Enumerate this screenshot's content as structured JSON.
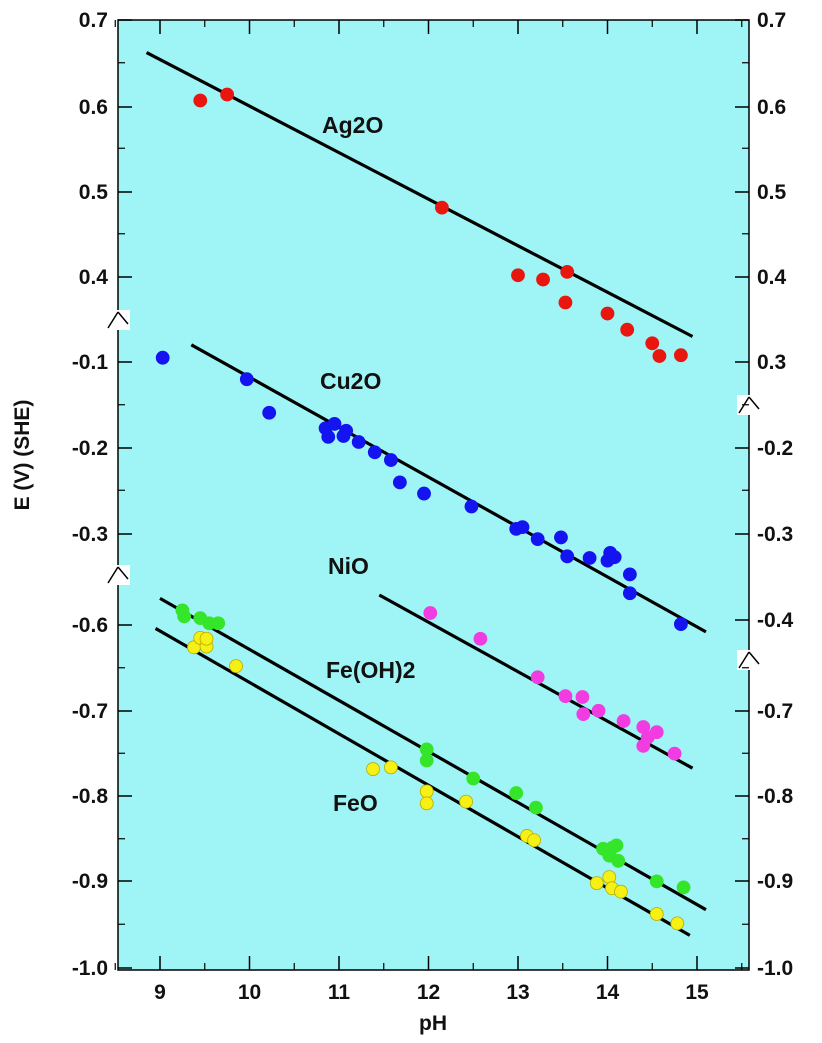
{
  "chart_data": {
    "type": "scatter",
    "title": "",
    "xlabel": "pH",
    "ylabel": "E (V) (SHE)",
    "xlim": [
      8.4,
      15.9
    ],
    "grid": false,
    "x_ticks": [
      "9",
      "10",
      "11",
      "12",
      "13",
      "14",
      "15"
    ],
    "y_ticks_left": [
      "0.7",
      "0.6",
      "0.5",
      "0.4",
      "-0.1",
      "-0.2",
      "-0.3",
      "-0.6",
      "-0.7",
      "-0.8",
      "-0.9",
      "-1.0"
    ],
    "y_ticks_right": [
      "0.7",
      "0.6",
      "0.5",
      "0.4",
      "0.3",
      "-0.2",
      "-0.3",
      "-0.4",
      "-0.7",
      "-0.8",
      "-0.9",
      "-1.0"
    ],
    "axis_breaks": "broken y-axis with break marks between segments",
    "plot_background": "#9ff5f5",
    "series": [
      {
        "name": "Ag2O",
        "color": "#e8160f",
        "fit_line": {
          "x": [
            8.85,
            14.95
          ],
          "y": [
            0.662,
            0.33
          ]
        },
        "points": [
          {
            "x": 9.45,
            "y": 0.606
          },
          {
            "x": 9.75,
            "y": 0.613
          },
          {
            "x": 12.15,
            "y": 0.481
          },
          {
            "x": 13.0,
            "y": 0.402
          },
          {
            "x": 13.28,
            "y": 0.397
          },
          {
            "x": 13.55,
            "y": 0.406
          },
          {
            "x": 13.53,
            "y": 0.37
          },
          {
            "x": 14.0,
            "y": 0.357
          },
          {
            "x": 14.22,
            "y": 0.338
          },
          {
            "x": 14.5,
            "y": 0.322
          },
          {
            "x": 14.58,
            "y": 0.307
          },
          {
            "x": 14.82,
            "y": 0.308
          }
        ]
      },
      {
        "name": "Cu2O",
        "color": "#1414f0",
        "fit_line": {
          "x": [
            9.35,
            15.1
          ],
          "y": [
            -0.08,
            -0.414
          ]
        },
        "points": [
          {
            "x": 9.03,
            "y": -0.095
          },
          {
            "x": 9.97,
            "y": -0.12
          },
          {
            "x": 10.22,
            "y": -0.159
          },
          {
            "x": 10.85,
            "y": -0.177
          },
          {
            "x": 10.88,
            "y": -0.187
          },
          {
            "x": 10.95,
            "y": -0.172
          },
          {
            "x": 11.05,
            "y": -0.186
          },
          {
            "x": 11.08,
            "y": -0.18
          },
          {
            "x": 11.22,
            "y": -0.193
          },
          {
            "x": 11.4,
            "y": -0.205
          },
          {
            "x": 11.58,
            "y": -0.214
          },
          {
            "x": 11.68,
            "y": -0.24
          },
          {
            "x": 11.95,
            "y": -0.253
          },
          {
            "x": 12.48,
            "y": -0.268
          },
          {
            "x": 12.98,
            "y": -0.294
          },
          {
            "x": 13.05,
            "y": -0.292
          },
          {
            "x": 13.22,
            "y": -0.306
          },
          {
            "x": 13.48,
            "y": -0.304
          },
          {
            "x": 13.55,
            "y": -0.326
          },
          {
            "x": 13.8,
            "y": -0.328
          },
          {
            "x": 14.0,
            "y": -0.331
          },
          {
            "x": 14.03,
            "y": -0.322
          },
          {
            "x": 14.08,
            "y": -0.327
          },
          {
            "x": 14.25,
            "y": -0.347
          },
          {
            "x": 14.25,
            "y": -0.369
          },
          {
            "x": 14.82,
            "y": -0.405
          }
        ]
      },
      {
        "name": "NiO",
        "color": "#f03ce0",
        "fit_line": {
          "x": [
            11.45,
            14.95
          ],
          "y": [
            -0.565,
            -0.767
          ]
        },
        "points": [
          {
            "x": 12.02,
            "y": -0.586
          },
          {
            "x": 12.58,
            "y": -0.616
          },
          {
            "x": 13.22,
            "y": -0.661
          },
          {
            "x": 13.53,
            "y": -0.683
          },
          {
            "x": 13.72,
            "y": -0.684
          },
          {
            "x": 13.73,
            "y": -0.704
          },
          {
            "x": 13.9,
            "y": -0.7
          },
          {
            "x": 14.18,
            "y": -0.712
          },
          {
            "x": 14.4,
            "y": -0.719
          },
          {
            "x": 14.4,
            "y": -0.741
          },
          {
            "x": 14.45,
            "y": -0.731
          },
          {
            "x": 14.55,
            "y": -0.725
          },
          {
            "x": 14.75,
            "y": -0.75
          }
        ]
      },
      {
        "name": "Fe(OH)2",
        "color": "#35e52a",
        "fit_line": {
          "x": [
            9.0,
            15.1
          ],
          "y": [
            -0.569,
            -0.932
          ]
        },
        "points": [
          {
            "x": 9.25,
            "y": -0.583
          },
          {
            "x": 9.27,
            "y": -0.59
          },
          {
            "x": 9.45,
            "y": -0.592
          },
          {
            "x": 9.55,
            "y": -0.598
          },
          {
            "x": 9.65,
            "y": -0.598
          },
          {
            "x": 11.98,
            "y": -0.745
          },
          {
            "x": 11.98,
            "y": -0.758
          },
          {
            "x": 12.5,
            "y": -0.779
          },
          {
            "x": 12.98,
            "y": -0.796
          },
          {
            "x": 13.2,
            "y": -0.813
          },
          {
            "x": 13.95,
            "y": -0.861
          },
          {
            "x": 14.02,
            "y": -0.869
          },
          {
            "x": 14.05,
            "y": -0.86
          },
          {
            "x": 14.1,
            "y": -0.857
          },
          {
            "x": 14.12,
            "y": -0.875
          },
          {
            "x": 14.55,
            "y": -0.899
          },
          {
            "x": 14.85,
            "y": -0.906
          }
        ]
      },
      {
        "name": "FeO",
        "color": "#f7f014",
        "fit_line": {
          "x": [
            8.95,
            14.92
          ],
          "y": [
            -0.604,
            -0.962
          ]
        },
        "points": [
          {
            "x": 9.38,
            "y": -0.626
          },
          {
            "x": 9.45,
            "y": -0.615
          },
          {
            "x": 9.52,
            "y": -0.625
          },
          {
            "x": 9.52,
            "y": -0.616
          },
          {
            "x": 9.85,
            "y": -0.648
          },
          {
            "x": 11.38,
            "y": -0.768
          },
          {
            "x": 11.58,
            "y": -0.766
          },
          {
            "x": 11.98,
            "y": -0.794
          },
          {
            "x": 11.98,
            "y": -0.808
          },
          {
            "x": 12.42,
            "y": -0.806
          },
          {
            "x": 13.1,
            "y": -0.846
          },
          {
            "x": 13.18,
            "y": -0.851
          },
          {
            "x": 13.88,
            "y": -0.901
          },
          {
            "x": 14.02,
            "y": -0.894
          },
          {
            "x": 14.05,
            "y": -0.907
          },
          {
            "x": 14.15,
            "y": -0.911
          },
          {
            "x": 14.55,
            "y": -0.937
          },
          {
            "x": 14.78,
            "y": -0.948
          }
        ]
      }
    ]
  }
}
